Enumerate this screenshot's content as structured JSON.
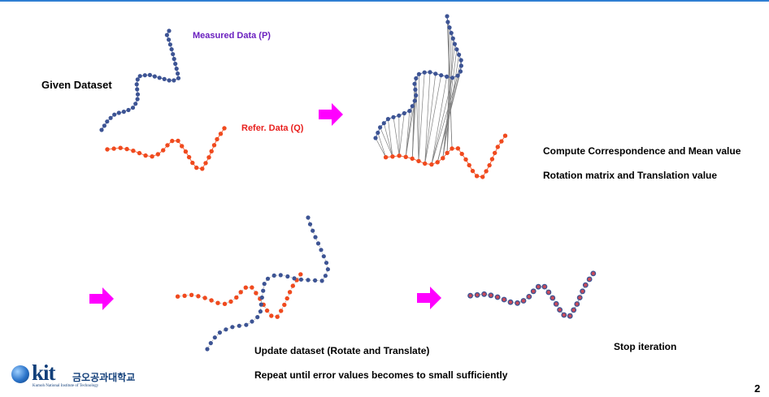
{
  "labels": {
    "given_dataset": "Given Dataset",
    "measured_data": "Measured Data (P)",
    "reference_data": "Refer. Data (Q)",
    "compute_step": "Compute Correspondence and Mean value",
    "rotation_step": "Rotation matrix and Translation value",
    "update_step": "Update dataset (Rotate and Translate)",
    "repeat_step": "Repeat until error values becomes to small sufficiently",
    "stop_step": "Stop iteration",
    "page_number": "2"
  },
  "logo": {
    "wordmark": "kit",
    "korean_name": "금오공과대학교",
    "subtitle": "Kumoh National Institute of Technology"
  },
  "colors": {
    "measured": "#3d5494",
    "reference": "#f04a1e",
    "arrow": "#ff00ff",
    "correspondence": "#808080",
    "converged": "#c74a5a",
    "top_bar": "#2f7fd3"
  },
  "icons": [
    "right-arrow-icon",
    "kit-globe-icon"
  ]
}
